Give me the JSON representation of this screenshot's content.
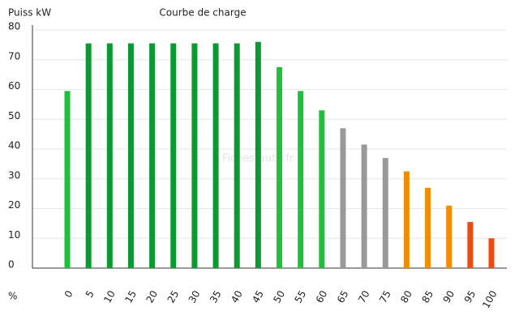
{
  "chart_data": {
    "type": "bar",
    "title": "Courbe de charge",
    "y_label": "Puiss kW",
    "x_label": "%",
    "annotation": "Fiches-auto.fr",
    "categories": [
      "0",
      "5",
      "10",
      "15",
      "20",
      "25",
      "30",
      "35",
      "40",
      "45",
      "50",
      "55",
      "60",
      "65",
      "70",
      "75",
      "80",
      "85",
      "90",
      "95",
      "100"
    ],
    "values": [
      59.5,
      75.5,
      75.5,
      75.5,
      75.5,
      75.5,
      75.5,
      75.5,
      75.5,
      76,
      67.5,
      59.5,
      53,
      47,
      41.5,
      37,
      32.5,
      27,
      21,
      15.5,
      10
    ],
    "colors": [
      "#1fc03c",
      "#0a9a30",
      "#0a9a30",
      "#0a9a30",
      "#0a9a30",
      "#0a9a30",
      "#0a9a30",
      "#0a9a30",
      "#0a9a30",
      "#0a9a30",
      "#1fc03c",
      "#1fc03c",
      "#1fc03c",
      "#999999",
      "#999999",
      "#999999",
      "#f28c00",
      "#f28c00",
      "#f28c00",
      "#f04a10",
      "#f04a10"
    ],
    "ylim": [
      0,
      80
    ],
    "yticks": [
      0,
      10,
      20,
      30,
      40,
      50,
      60,
      70,
      80
    ],
    "grid": true
  }
}
